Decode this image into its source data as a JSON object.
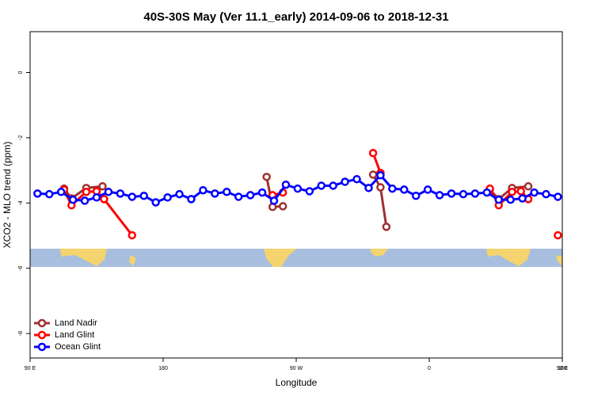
{
  "chart_data": {
    "type": "line",
    "title": "40S-30S May (Ver 11.1_early)   2014-09-06 to 2018-12-31",
    "x_label": "Longitude",
    "y_label": "XCO2 - MLO trend (ppm)",
    "xlim": [
      90,
      450
    ],
    "ylim": [
      -8.75,
      1.25
    ],
    "xticks": [
      {
        "value": 90,
        "label": "90 E"
      },
      {
        "value": 180,
        "label": "180"
      },
      {
        "value": 270,
        "label": "90 W"
      },
      {
        "value": 360,
        "label": "0"
      },
      {
        "value": 450,
        "label": "90 E"
      },
      {
        "value": 540,
        "label": "180"
      }
    ],
    "yticks": [
      0,
      -2,
      -4,
      -6,
      -8
    ],
    "legend": "bottom-left",
    "series": [
      {
        "name": "Land Nadir",
        "color": "#a03030",
        "x": [
          113,
          118,
          128,
          139,
          200,
          250,
          254,
          261,
          290,
          322,
          327,
          331,
          370,
          401,
          407,
          416,
          427
        ],
        "values": [
          -3.56,
          -3.86,
          -3.54,
          -3.49,
          null,
          -3.2,
          -4.12,
          -4.1,
          null,
          -3.13,
          -3.52,
          -4.73,
          null,
          -3.59,
          -3.88,
          -3.54,
          -3.49
        ]
      },
      {
        "name": "Land Glint",
        "color": "#ff0000",
        "x": [
          113,
          118,
          128,
          135,
          140,
          159,
          200,
          254,
          261,
          290,
          322,
          327,
          370,
          401,
          407,
          416,
          422,
          427,
          437,
          447
        ],
        "values": [
          -3.59,
          -4.07,
          -3.66,
          -3.64,
          -3.88,
          -4.99,
          null,
          -3.76,
          -3.68,
          null,
          -2.47,
          -3.08,
          null,
          -3.56,
          -4.07,
          -3.66,
          -3.64,
          -3.88,
          null,
          -4.99
        ]
      },
      {
        "name": "Ocean Glint",
        "color": "#0000ff",
        "x": [
          95,
          103,
          111,
          119,
          127,
          135,
          143,
          151,
          159,
          167,
          175,
          183,
          191,
          199,
          207,
          215,
          223,
          231,
          239,
          247,
          255,
          263,
          271,
          279,
          287,
          295,
          303,
          311,
          319,
          327,
          335,
          343,
          351,
          359,
          367,
          375,
          383,
          391,
          399,
          407,
          415,
          423,
          431,
          439,
          447
        ],
        "values": [
          -3.71,
          -3.73,
          -3.66,
          -3.9,
          -3.93,
          -3.83,
          -3.66,
          -3.71,
          -3.81,
          -3.78,
          -3.98,
          -3.83,
          -3.73,
          -3.88,
          -3.61,
          -3.71,
          -3.66,
          -3.81,
          -3.76,
          -3.68,
          -3.93,
          -3.44,
          -3.56,
          -3.64,
          -3.47,
          -3.47,
          -3.35,
          -3.27,
          -3.54,
          -3.15,
          -3.56,
          -3.59,
          -3.78,
          -3.59,
          -3.76,
          -3.71,
          -3.73,
          -3.71,
          -3.68,
          -3.9,
          -3.9,
          -3.86,
          -3.68,
          -3.73,
          -3.81
        ]
      }
    ]
  }
}
